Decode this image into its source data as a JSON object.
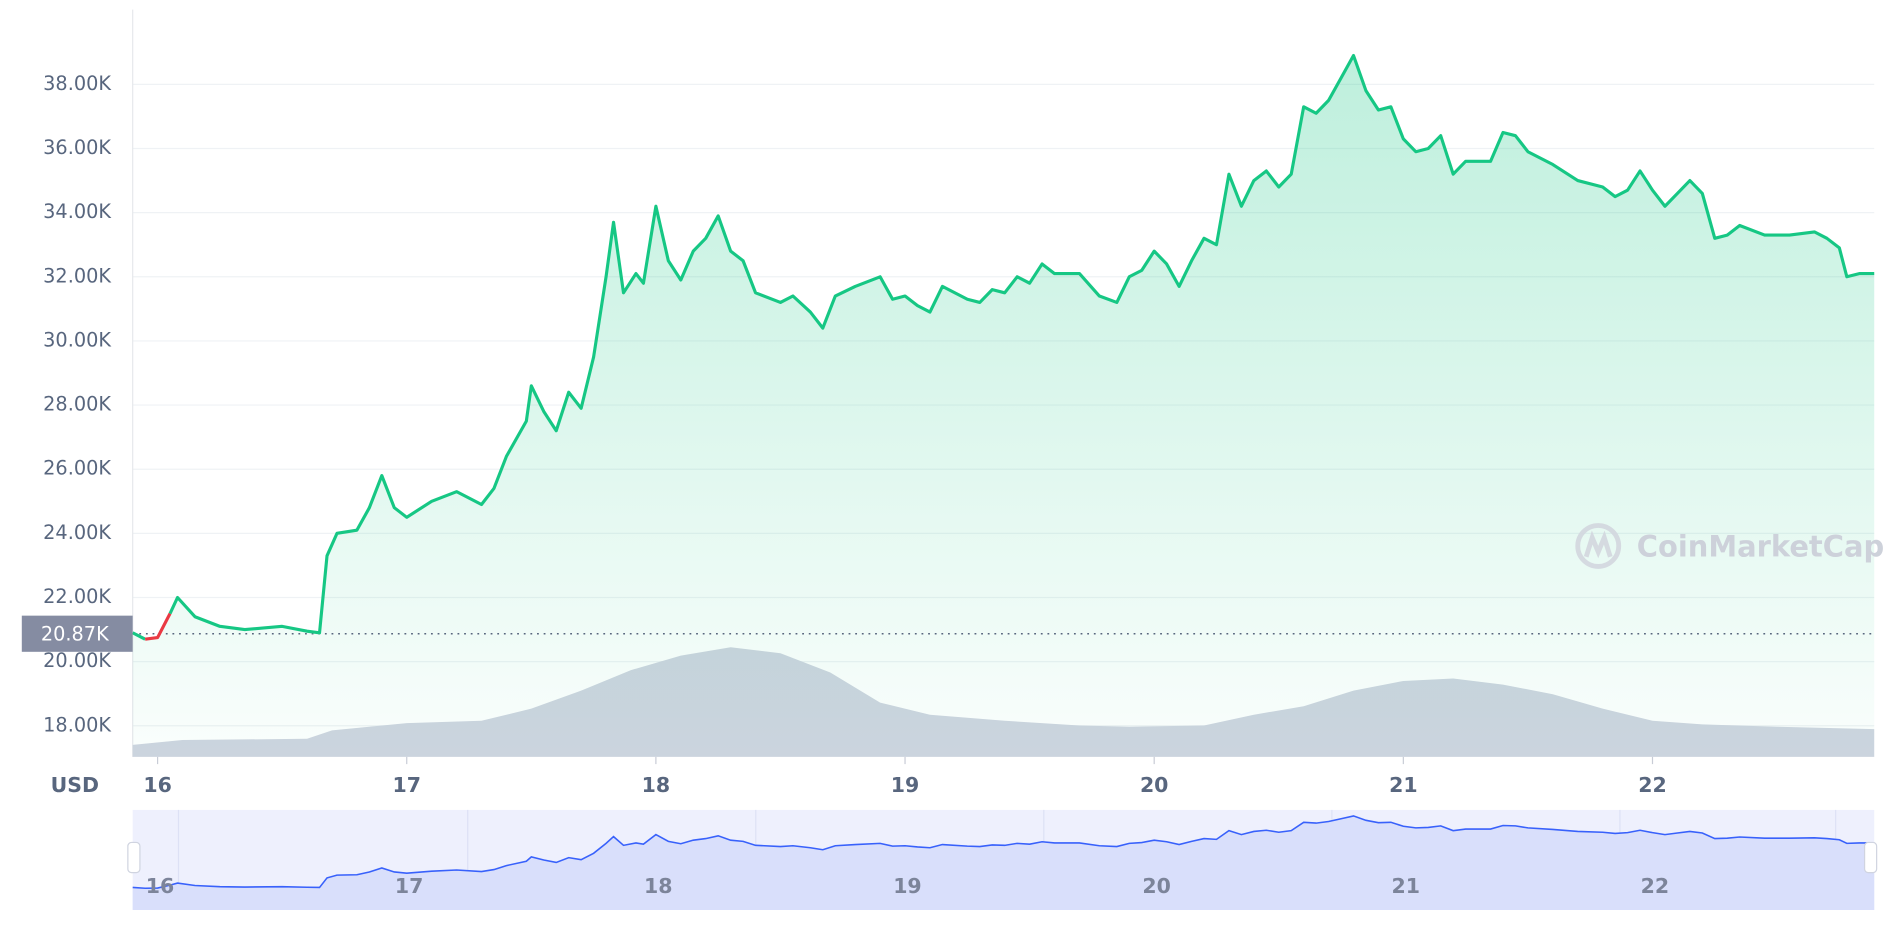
{
  "chart_data": {
    "type": "line",
    "y_axis_label": "USD",
    "watermark": "CoinMarketCap",
    "reference": {
      "value": 20870,
      "label": "20.87K"
    },
    "xlim": [
      15.9,
      22.89
    ],
    "xticks": [
      16,
      17,
      18,
      19,
      20,
      21,
      22
    ],
    "ylim": [
      17030,
      40330
    ],
    "yticks": [
      {
        "value": 18000,
        "label": "18.00K"
      },
      {
        "value": 20000,
        "label": "20.00K"
      },
      {
        "value": 22000,
        "label": "22.00K"
      },
      {
        "value": 24000,
        "label": "24.00K"
      },
      {
        "value": 26000,
        "label": "26.00K"
      },
      {
        "value": 28000,
        "label": "28.00K"
      },
      {
        "value": 30000,
        "label": "30.00K"
      },
      {
        "value": 32000,
        "label": "32.00K"
      },
      {
        "value": 34000,
        "label": "34.00K"
      },
      {
        "value": 36000,
        "label": "36.00K"
      },
      {
        "value": 38000,
        "label": "38.00K"
      }
    ],
    "grid": true,
    "y2lim": [
      0,
      100
    ],
    "series": [
      {
        "color": "#16c784",
        "down_color": "#ea3943",
        "x": [
          15.9,
          15.95,
          16.0,
          16.05,
          16.08,
          16.15,
          16.25,
          16.35,
          16.5,
          16.6,
          16.65,
          16.68,
          16.72,
          16.8,
          16.85,
          16.9,
          16.95,
          17.0,
          17.1,
          17.2,
          17.3,
          17.35,
          17.4,
          17.48,
          17.5,
          17.55,
          17.6,
          17.65,
          17.7,
          17.75,
          17.8,
          17.83,
          17.87,
          17.92,
          17.95,
          18.0,
          18.05,
          18.1,
          18.15,
          18.2,
          18.25,
          18.3,
          18.35,
          18.4,
          18.5,
          18.55,
          18.62,
          18.67,
          18.72,
          18.8,
          18.9,
          18.95,
          19.0,
          19.05,
          19.1,
          19.15,
          19.25,
          19.3,
          19.35,
          19.4,
          19.45,
          19.5,
          19.55,
          19.6,
          19.7,
          19.78,
          19.85,
          19.9,
          19.95,
          20.0,
          20.05,
          20.1,
          20.15,
          20.2,
          20.25,
          20.3,
          20.35,
          20.4,
          20.45,
          20.5,
          20.55,
          20.6,
          20.65,
          20.7,
          20.75,
          20.8,
          20.85,
          20.9,
          20.95,
          21.0,
          21.05,
          21.1,
          21.15,
          21.2,
          21.25,
          21.35,
          21.4,
          21.45,
          21.5,
          21.6,
          21.7,
          21.8,
          21.85,
          21.9,
          21.95,
          22.0,
          22.05,
          22.1,
          22.15,
          22.2,
          22.25,
          22.3,
          22.35,
          22.45,
          22.55,
          22.65,
          22.7,
          22.75,
          22.78,
          22.83,
          22.89
        ],
        "values": [
          20900,
          20700,
          20750,
          21500,
          22000,
          21400,
          21100,
          21000,
          21100,
          20950,
          20900,
          23300,
          24000,
          24100,
          24800,
          25800,
          24800,
          24500,
          25000,
          25300,
          24900,
          25400,
          26400,
          27500,
          28600,
          27800,
          27200,
          28400,
          27900,
          29500,
          32000,
          33700,
          31500,
          32100,
          31800,
          34200,
          32500,
          31900,
          32800,
          33200,
          33900,
          32800,
          32500,
          31500,
          31200,
          31400,
          30900,
          30400,
          31400,
          31700,
          32000,
          31300,
          31400,
          31100,
          30900,
          31700,
          31300,
          31200,
          31600,
          31500,
          32000,
          31800,
          32400,
          32100,
          32100,
          31400,
          31200,
          32000,
          32200,
          32800,
          32400,
          31700,
          32500,
          33200,
          33000,
          35200,
          34200,
          35000,
          35300,
          34800,
          35200,
          37300,
          37100,
          37500,
          38200,
          38900,
          37800,
          37200,
          37300,
          36300,
          35900,
          36000,
          36400,
          35200,
          35600,
          35600,
          36500,
          36400,
          35900,
          35500,
          35000,
          34800,
          34500,
          34700,
          35300,
          34700,
          34200,
          34600,
          35000,
          34600,
          33200,
          33300,
          33600,
          33300,
          33300,
          33400,
          33200,
          32900,
          32000,
          32100,
          32100
        ]
      },
      {
        "color": "#cfd4e0",
        "axis": "y2",
        "x": [
          15.9,
          16.1,
          16.6,
          16.7,
          17.0,
          17.3,
          17.5,
          17.7,
          17.9,
          18.1,
          18.3,
          18.5,
          18.7,
          18.9,
          19.1,
          19.4,
          19.7,
          19.9,
          20.2,
          20.4,
          20.6,
          20.8,
          21.0,
          21.2,
          21.4,
          21.6,
          21.8,
          22.0,
          22.2,
          22.5,
          22.89
        ],
        "values": [
          10,
          14,
          15,
          22,
          28,
          30,
          40,
          55,
          72,
          84,
          91,
          86,
          70,
          45,
          35,
          30,
          26,
          25,
          26,
          35,
          42,
          55,
          63,
          65,
          60,
          52,
          40,
          30,
          27,
          25,
          23
        ]
      }
    ]
  }
}
